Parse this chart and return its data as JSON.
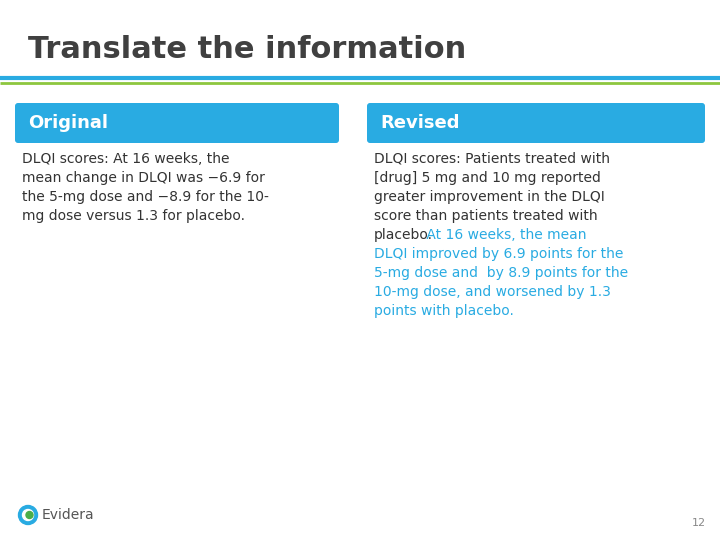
{
  "title": "Translate the information",
  "title_color": "#404040",
  "title_fontsize": 22,
  "background_color": "#ffffff",
  "separator_color_blue": "#29abe2",
  "separator_color_green": "#8dc63f",
  "original_label": "Original",
  "revised_label": "Revised",
  "label_fontsize": 13,
  "label_color": "#ffffff",
  "label_bg_color": "#29abe2",
  "lines_orig": [
    "DLQI scores: At 16 weeks, the",
    "mean change in DLQI was −6.9 for",
    "the 5-mg dose and −8.9 for the 10-",
    "mg dose versus 1.3 for placebo."
  ],
  "lines_rev_black": [
    "DLQI scores: Patients treated with",
    "[drug] 5 mg and 10 mg reported",
    "greater improvement in the DLQI",
    "score than patients treated with",
    "placebo."
  ],
  "lines_rev_blue": [
    " At 16 weeks, the mean",
    "DLQI improved by 6.9 points for the",
    "5-mg dose and  by 8.9 points for the",
    "10-mg dose, and worsened by 1.3",
    "points with placebo."
  ],
  "body_fontsize": 10,
  "body_text_color": "#333333",
  "body_text_blue": "#29abe2",
  "footer_text": "Evidera",
  "page_number": "12",
  "logo_circle_color": "#29abe2",
  "logo_inner_color": "#4aae49"
}
